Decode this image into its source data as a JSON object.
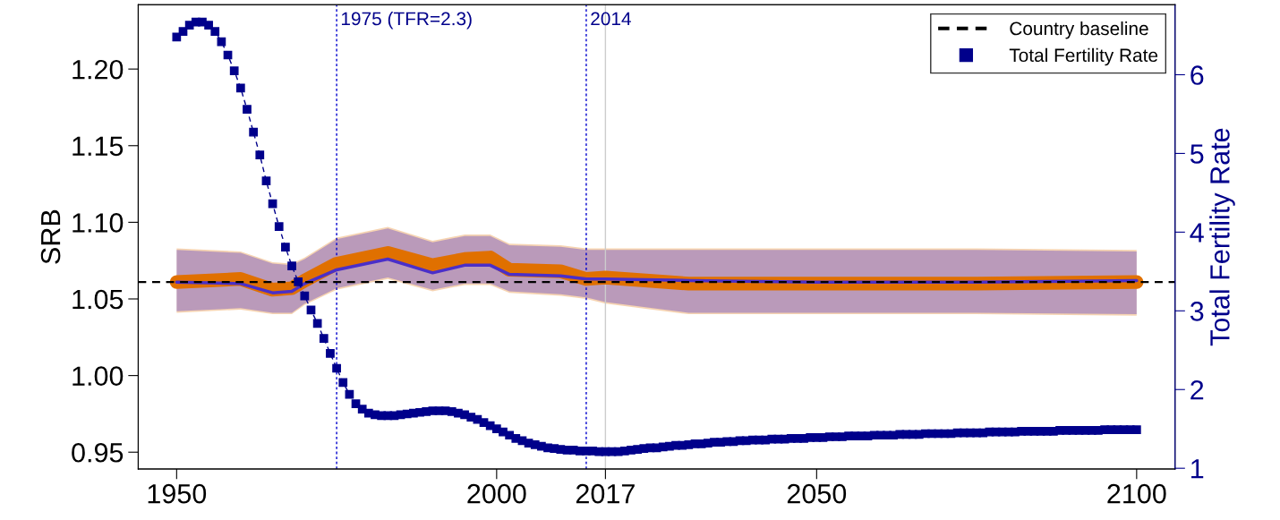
{
  "chart_data": {
    "type": "line",
    "ylabel": "SRB",
    "y2label": "Total Fertility Rate",
    "xlim": [
      1944,
      2106
    ],
    "xticks": [
      1950,
      2000,
      2017,
      2050,
      2100
    ],
    "ylim": [
      0.939,
      1.242
    ],
    "yticks": [
      {
        "value": 0.95,
        "label": "0.95"
      },
      {
        "value": 1.0,
        "label": "1.00"
      },
      {
        "value": 1.05,
        "label": "1.05"
      },
      {
        "value": 1.1,
        "label": "1.10"
      },
      {
        "value": 1.15,
        "label": "1.15"
      },
      {
        "value": 1.2,
        "label": "1.20"
      }
    ],
    "y2lim": [
      0.99,
      6.89
    ],
    "y2ticks": [
      1,
      2,
      3,
      4,
      5,
      6
    ],
    "series": [
      {
        "color": "#e07000",
        "x": [
          1950,
          1960,
          1965,
          1968,
          1970,
          1975,
          1983,
          1990,
          1995,
          1999,
          2002,
          2010,
          2014,
          2017,
          2030,
          2050,
          2075,
          2100
        ],
        "values": [
          1.061,
          1.063,
          1.056,
          1.057,
          1.062,
          1.073,
          1.08,
          1.072,
          1.076,
          1.077,
          1.069,
          1.068,
          1.063,
          1.064,
          1.06,
          1.06,
          1.06,
          1.061
        ],
        "lower": [
          1.041,
          1.043,
          1.04,
          1.04,
          1.046,
          1.056,
          1.063,
          1.055,
          1.059,
          1.059,
          1.054,
          1.052,
          1.05,
          1.047,
          1.04,
          1.04,
          1.04,
          1.039
        ],
        "upper": [
          1.083,
          1.081,
          1.074,
          1.073,
          1.077,
          1.09,
          1.097,
          1.088,
          1.092,
          1.092,
          1.086,
          1.085,
          1.083,
          1.083,
          1.083,
          1.083,
          1.083,
          1.082
        ]
      },
      {
        "color": "#4a2fc8",
        "x": [
          1950,
          1960,
          1965,
          1968,
          1970,
          1975,
          1983,
          1990,
          1995,
          1999,
          2002,
          2010,
          2014,
          2017,
          2030,
          2050,
          2075,
          2100
        ],
        "values": [
          1.061,
          1.06,
          1.054,
          1.055,
          1.06,
          1.069,
          1.076,
          1.067,
          1.072,
          1.072,
          1.066,
          1.065,
          1.063,
          1.063,
          1.062,
          1.061,
          1.061,
          1.062
        ],
        "lower": [
          1.042,
          1.044,
          1.041,
          1.041,
          1.047,
          1.057,
          1.064,
          1.056,
          1.06,
          1.06,
          1.055,
          1.053,
          1.051,
          1.048,
          1.041,
          1.041,
          1.041,
          1.04
        ],
        "upper": [
          1.082,
          1.08,
          1.073,
          1.072,
          1.076,
          1.089,
          1.096,
          1.087,
          1.091,
          1.091,
          1.085,
          1.084,
          1.082,
          1.082,
          1.082,
          1.082,
          1.082,
          1.081
        ]
      },
      {
        "name": "Total Fertility Rate",
        "axis": "y2",
        "color": "#00008b",
        "marker": "square",
        "line_style": "dashed",
        "x": [
          1950,
          1951,
          1952,
          1953,
          1954,
          1955,
          1956,
          1957,
          1958,
          1959,
          1960,
          1961,
          1962,
          1963,
          1964,
          1965,
          1966,
          1967,
          1968,
          1969,
          1970,
          1971,
          1972,
          1973,
          1974,
          1975,
          1976,
          1977,
          1978,
          1979,
          1980,
          1981,
          1982,
          1983,
          1984,
          1985,
          1986,
          1987,
          1988,
          1989,
          1990,
          1991,
          1992,
          1993,
          1994,
          1995,
          1996,
          1997,
          1998,
          1999,
          2000,
          2001,
          2002,
          2003,
          2004,
          2005,
          2006,
          2007,
          2008,
          2009,
          2010,
          2011,
          2012,
          2013,
          2014,
          2015,
          2016,
          2017,
          2018,
          2019,
          2020,
          2021,
          2022,
          2023,
          2024,
          2025,
          2026,
          2027,
          2028,
          2029,
          2030,
          2031,
          2032,
          2033,
          2034,
          2035,
          2036,
          2037,
          2038,
          2039,
          2040,
          2041,
          2042,
          2043,
          2044,
          2045,
          2046,
          2047,
          2048,
          2049,
          2050,
          2051,
          2052,
          2053,
          2054,
          2055,
          2056,
          2057,
          2058,
          2059,
          2060,
          2061,
          2062,
          2063,
          2064,
          2065,
          2066,
          2067,
          2068,
          2069,
          2070,
          2071,
          2072,
          2073,
          2074,
          2075,
          2076,
          2077,
          2078,
          2079,
          2080,
          2081,
          2082,
          2083,
          2084,
          2085,
          2086,
          2087,
          2088,
          2089,
          2090,
          2091,
          2092,
          2093,
          2094,
          2095,
          2096,
          2097,
          2098,
          2099,
          2100
        ],
        "values": [
          6.48,
          6.55,
          6.63,
          6.67,
          6.67,
          6.63,
          6.55,
          6.42,
          6.25,
          6.05,
          5.83,
          5.56,
          5.27,
          4.98,
          4.65,
          4.36,
          4.07,
          3.81,
          3.57,
          3.37,
          3.19,
          3.01,
          2.84,
          2.65,
          2.46,
          2.27,
          2.09,
          1.94,
          1.82,
          1.75,
          1.7,
          1.68,
          1.67,
          1.67,
          1.67,
          1.68,
          1.69,
          1.7,
          1.71,
          1.72,
          1.73,
          1.73,
          1.73,
          1.72,
          1.7,
          1.68,
          1.65,
          1.62,
          1.58,
          1.54,
          1.5,
          1.46,
          1.42,
          1.38,
          1.35,
          1.32,
          1.3,
          1.28,
          1.26,
          1.25,
          1.24,
          1.23,
          1.23,
          1.22,
          1.22,
          1.22,
          1.21,
          1.21,
          1.21,
          1.21,
          1.22,
          1.23,
          1.24,
          1.25,
          1.26,
          1.26,
          1.27,
          1.28,
          1.29,
          1.29,
          1.3,
          1.31,
          1.31,
          1.32,
          1.33,
          1.33,
          1.34,
          1.34,
          1.35,
          1.35,
          1.36,
          1.36,
          1.36,
          1.37,
          1.37,
          1.37,
          1.38,
          1.38,
          1.38,
          1.39,
          1.39,
          1.39,
          1.4,
          1.4,
          1.4,
          1.41,
          1.41,
          1.41,
          1.41,
          1.42,
          1.42,
          1.42,
          1.42,
          1.43,
          1.43,
          1.43,
          1.43,
          1.44,
          1.44,
          1.44,
          1.44,
          1.44,
          1.45,
          1.45,
          1.45,
          1.45,
          1.45,
          1.46,
          1.46,
          1.46,
          1.46,
          1.46,
          1.47,
          1.47,
          1.47,
          1.47,
          1.47,
          1.47,
          1.48,
          1.48,
          1.48,
          1.48,
          1.48,
          1.48,
          1.48,
          1.49,
          1.49,
          1.49,
          1.49,
          1.49,
          1.49
        ]
      }
    ],
    "ref_lines": [
      {
        "axis": "y",
        "value": 1.061,
        "label": "Country baseline",
        "color": "#000000",
        "line_style": "dashed"
      },
      {
        "axis": "x",
        "value": 1975,
        "label": "1975 (TFR=2.3)",
        "color": "#0000cd",
        "line_style": "dotted"
      },
      {
        "axis": "x",
        "value": 2014,
        "label": "2014",
        "color": "#0000cd",
        "line_style": "dotted"
      },
      {
        "axis": "x",
        "value": 2017,
        "color": "#cccccc",
        "line_style": "solid"
      }
    ],
    "legend": "top right",
    "grid": false
  }
}
